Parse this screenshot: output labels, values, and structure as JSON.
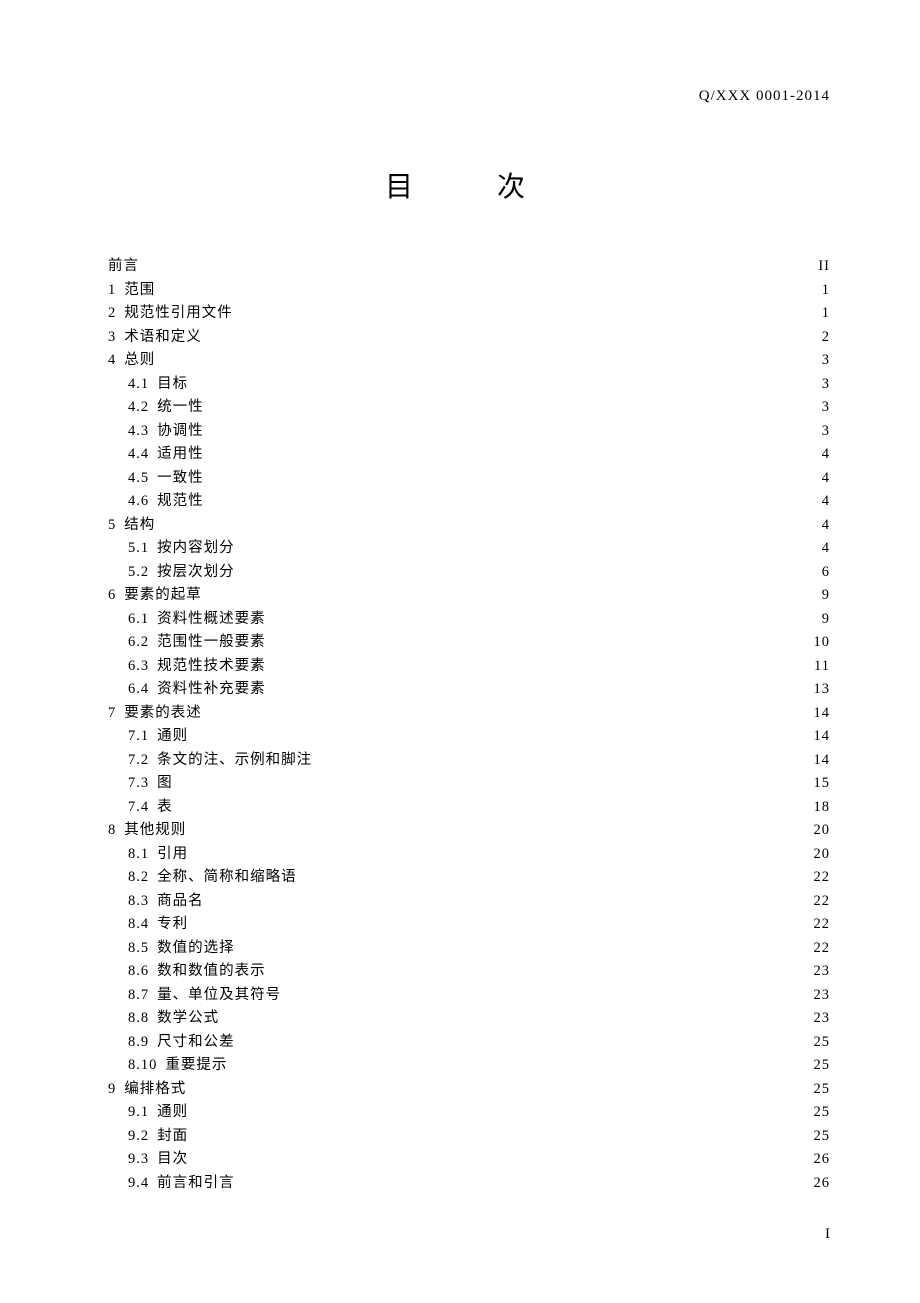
{
  "header": "Q/XXX 0001-2014",
  "title": "目　次",
  "footer": "I",
  "entries": [
    {
      "level": 0,
      "num": "",
      "text": "前言",
      "page": "II"
    },
    {
      "level": 0,
      "num": "1",
      "text": "范围",
      "page": "1"
    },
    {
      "level": 0,
      "num": "2",
      "text": "规范性引用文件",
      "page": "1"
    },
    {
      "level": 0,
      "num": "3",
      "text": "术语和定义",
      "page": "2"
    },
    {
      "level": 0,
      "num": "4",
      "text": "总则",
      "page": "3"
    },
    {
      "level": 1,
      "num": "4.1",
      "text": "目标",
      "page": "3"
    },
    {
      "level": 1,
      "num": "4.2",
      "text": "统一性",
      "page": "3"
    },
    {
      "level": 1,
      "num": "4.3",
      "text": "协调性",
      "page": "3"
    },
    {
      "level": 1,
      "num": "4.4",
      "text": "适用性",
      "page": "4"
    },
    {
      "level": 1,
      "num": "4.5",
      "text": "一致性",
      "page": "4"
    },
    {
      "level": 1,
      "num": "4.6",
      "text": "规范性",
      "page": "4"
    },
    {
      "level": 0,
      "num": "5",
      "text": "结构",
      "page": "4"
    },
    {
      "level": 1,
      "num": "5.1",
      "text": "按内容划分",
      "page": "4"
    },
    {
      "level": 1,
      "num": "5.2",
      "text": "按层次划分",
      "page": "6"
    },
    {
      "level": 0,
      "num": "6",
      "text": "要素的起草",
      "page": "9"
    },
    {
      "level": 1,
      "num": "6.1",
      "text": "资料性概述要素",
      "page": "9"
    },
    {
      "level": 1,
      "num": "6.2",
      "text": "范围性一般要素",
      "page": "10"
    },
    {
      "level": 1,
      "num": "6.3",
      "text": "规范性技术要素",
      "page": "11"
    },
    {
      "level": 1,
      "num": "6.4",
      "text": "资料性补充要素",
      "page": "13"
    },
    {
      "level": 0,
      "num": "7",
      "text": "要素的表述",
      "page": "14"
    },
    {
      "level": 1,
      "num": "7.1",
      "text": "通则",
      "page": "14"
    },
    {
      "level": 1,
      "num": "7.2",
      "text": "条文的注、示例和脚注",
      "page": "14"
    },
    {
      "level": 1,
      "num": "7.3",
      "text": "图",
      "page": "15"
    },
    {
      "level": 1,
      "num": "7.4",
      "text": "表",
      "page": "18"
    },
    {
      "level": 0,
      "num": "8",
      "text": "其他规则",
      "page": "20"
    },
    {
      "level": 1,
      "num": "8.1",
      "text": "引用",
      "page": "20"
    },
    {
      "level": 1,
      "num": "8.2",
      "text": "全称、简称和缩略语",
      "page": "22"
    },
    {
      "level": 1,
      "num": "8.3",
      "text": "商品名",
      "page": "22"
    },
    {
      "level": 1,
      "num": "8.4",
      "text": "专利",
      "page": "22"
    },
    {
      "level": 1,
      "num": "8.5",
      "text": "数值的选择",
      "page": "22"
    },
    {
      "level": 1,
      "num": "8.6",
      "text": "数和数值的表示",
      "page": "23"
    },
    {
      "level": 1,
      "num": "8.7",
      "text": "量、单位及其符号",
      "page": "23"
    },
    {
      "level": 1,
      "num": "8.8",
      "text": "数学公式",
      "page": "23"
    },
    {
      "level": 1,
      "num": "8.9",
      "text": "尺寸和公差",
      "page": "25"
    },
    {
      "level": 1,
      "num": "8.10",
      "text": "重要提示",
      "page": "25"
    },
    {
      "level": 0,
      "num": "9",
      "text": "编排格式",
      "page": "25"
    },
    {
      "level": 1,
      "num": "9.1",
      "text": "通则",
      "page": "25"
    },
    {
      "level": 1,
      "num": "9.2",
      "text": "封面",
      "page": "25"
    },
    {
      "level": 1,
      "num": "9.3",
      "text": "目次",
      "page": "26"
    },
    {
      "level": 1,
      "num": "9.4",
      "text": "前言和引言",
      "page": "26"
    }
  ]
}
